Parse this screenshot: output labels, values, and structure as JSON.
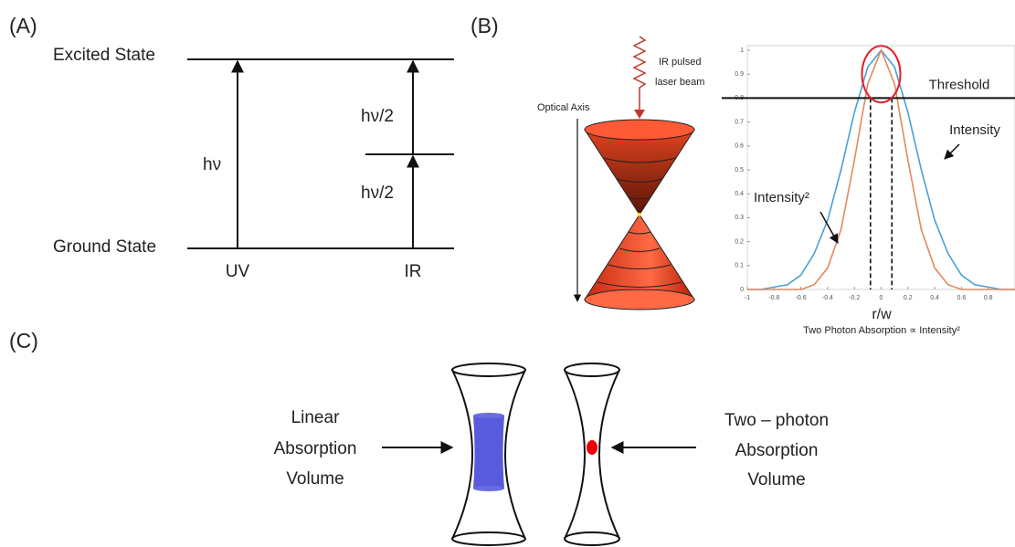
{
  "panel_a": {
    "label": "(A)",
    "excited": "Excited State",
    "ground": "Ground State",
    "h_nu": "hν",
    "h_nu_half_top": "hν/2",
    "h_nu_half_bottom": "hν/2",
    "uv": "UV",
    "ir": "IR"
  },
  "panel_b": {
    "label": "(B)",
    "beam_line1": "IR pulsed",
    "beam_line2": "laser beam",
    "axis": "Optical Axis"
  },
  "panel_c": {
    "label": "(C)",
    "left": [
      "Linear",
      "Absorption",
      "Volume"
    ],
    "right": [
      "Two – photon",
      "Absorption",
      "Volume"
    ]
  },
  "chart_data": {
    "type": "line",
    "x": [
      -1,
      -0.9,
      -0.8,
      -0.7,
      -0.6,
      -0.5,
      -0.4,
      -0.3,
      -0.2,
      -0.1,
      0,
      0.1,
      0.2,
      0.3,
      0.4,
      0.5,
      0.6,
      0.7,
      0.8,
      0.9,
      1
    ],
    "series": [
      {
        "name": "Intensity",
        "color": "#4a9fd8",
        "values": [
          0,
          0,
          0.01,
          0.02,
          0.06,
          0.15,
          0.29,
          0.5,
          0.74,
          0.93,
          1,
          0.93,
          0.74,
          0.5,
          0.29,
          0.15,
          0.06,
          0.02,
          0.01,
          0,
          0
        ]
      },
      {
        "name": "Intensity²",
        "color": "#e08a5e",
        "values": [
          0,
          0,
          0,
          0,
          0,
          0.02,
          0.09,
          0.25,
          0.54,
          0.86,
          1,
          0.86,
          0.54,
          0.25,
          0.09,
          0.02,
          0,
          0,
          0,
          0,
          0
        ]
      }
    ],
    "xlim": [
      -1,
      1
    ],
    "ylim": [
      0,
      1
    ],
    "xticks": [
      -1,
      -0.8,
      -0.6,
      -0.4,
      -0.2,
      0,
      0.2,
      0.4,
      0.6,
      0.8
    ],
    "yticks": [
      0,
      0.1,
      0.2,
      0.3,
      0.4,
      0.5,
      0.6,
      0.7,
      0.8,
      0.9,
      1
    ],
    "threshold": {
      "label": "Threshold",
      "value": 0.8
    },
    "dashed_lines_x": [
      -0.08,
      0.08
    ],
    "xlabel": "r/w",
    "caption": "Two Photon Absorption ∝ Intensity²"
  }
}
